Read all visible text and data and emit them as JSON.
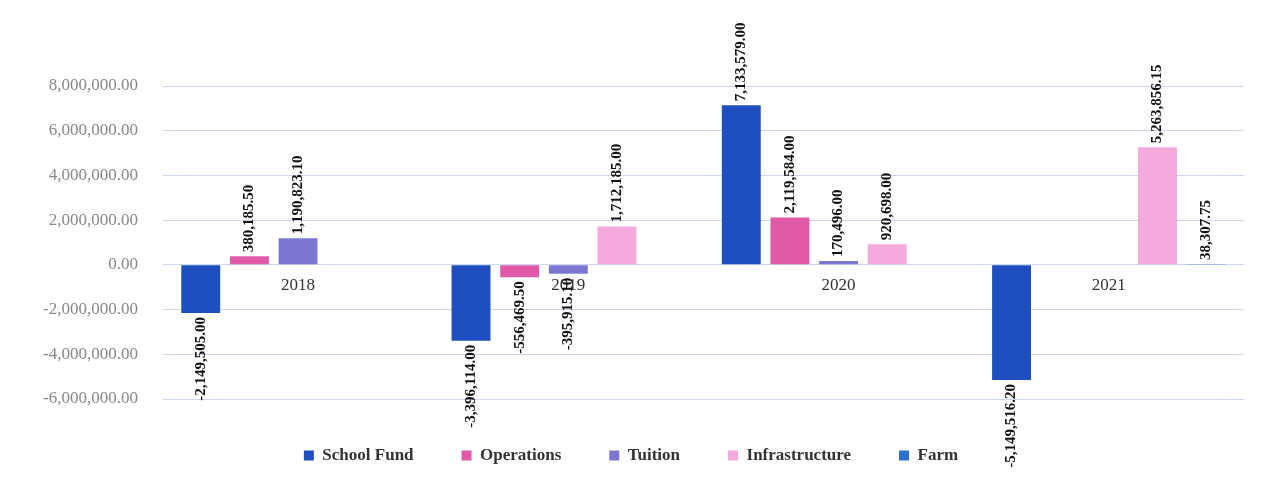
{
  "chart_data": {
    "type": "bar",
    "categories": [
      "2018",
      "2019",
      "2020",
      "2021"
    ],
    "series": [
      {
        "name": "School Fund",
        "color": "#1f4fbf",
        "values": [
          -2149505.0,
          -3396114.0,
          7133579.0,
          -5149516.2
        ],
        "value_labels": [
          "-2,149,505.00",
          "-3,396,114.00",
          "7,133,579.00",
          "-5,149,516.20"
        ]
      },
      {
        "name": "Operations",
        "color": "#e05aa8",
        "values": [
          380185.5,
          -556469.5,
          2119584.0,
          null
        ],
        "value_labels": [
          "380,185.50",
          "-556,469.50",
          "2,119,584.00",
          null
        ]
      },
      {
        "name": "Tuition",
        "color": "#7c78d2",
        "values": [
          1190823.1,
          -395915.1,
          170496.0,
          null
        ],
        "value_labels": [
          "1,190,823.10",
          "-395,915.10",
          "170,496.00",
          null
        ]
      },
      {
        "name": "Infrastructure",
        "color": "#f5a9dc",
        "values": [
          null,
          1712185.0,
          920698.0,
          5263856.15
        ],
        "value_labels": [
          null,
          "1,712,185.00",
          "920,698.00",
          "5,263,856.15"
        ]
      },
      {
        "name": "Farm",
        "color": "#2b6fd0",
        "values": [
          null,
          null,
          null,
          38307.75
        ],
        "value_labels": [
          null,
          null,
          null,
          "38,307.75"
        ]
      }
    ],
    "ylim": [
      -6000000,
      8000000
    ],
    "yticks": [
      {
        "value": -6000000,
        "label": "-6,000,000.00"
      },
      {
        "value": -4000000,
        "label": "-4,000,000.00"
      },
      {
        "value": -2000000,
        "label": "-2,000,000.00"
      },
      {
        "value": 0,
        "label": "0.00"
      },
      {
        "value": 2000000,
        "label": "2,000,000.00"
      },
      {
        "value": 4000000,
        "label": "4,000,000.00"
      },
      {
        "value": 6000000,
        "label": "6,000,000.00"
      },
      {
        "value": 8000000,
        "label": "8,000,000.00"
      }
    ],
    "grid": "y",
    "legend": "bottom"
  }
}
